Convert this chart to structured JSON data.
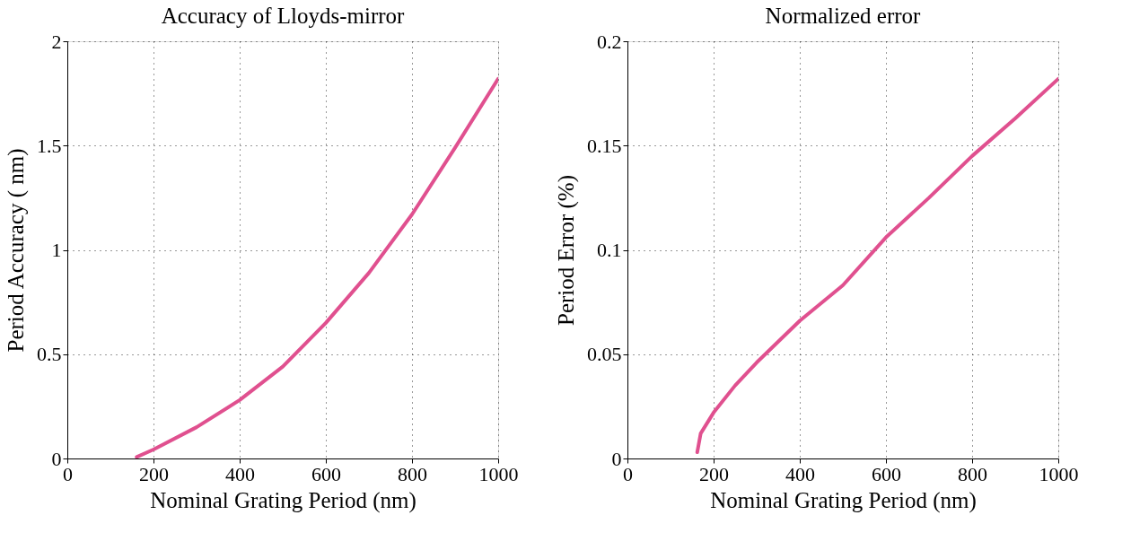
{
  "chart_data": [
    {
      "type": "line",
      "title": "Accuracy of Lloyds-mirror",
      "xlabel": "Nominal Grating Period (nm)",
      "ylabel": "Period Accuracy ( nm)",
      "xlim": [
        0,
        1000
      ],
      "ylim": [
        0,
        2
      ],
      "xticks": [
        0,
        200,
        400,
        600,
        800,
        1000
      ],
      "yticks": [
        0,
        0.5,
        1,
        1.5,
        2
      ],
      "grid": true,
      "line_style": "solid",
      "series": [
        {
          "color": "#e0508f",
          "x": [
            161,
            200,
            300,
            400,
            500,
            600,
            700,
            800,
            900,
            1000
          ],
          "values": [
            0.007,
            0.043,
            0.15,
            0.28,
            0.44,
            0.65,
            0.89,
            1.17,
            1.49,
            1.82
          ]
        }
      ]
    },
    {
      "type": "line",
      "title": "Normalized error",
      "xlabel": "Nominal Grating Period (nm)",
      "ylabel": "Period Error (%)",
      "xlim": [
        0,
        1000
      ],
      "ylim": [
        0,
        0.2
      ],
      "xticks": [
        0,
        200,
        400,
        600,
        800,
        1000
      ],
      "yticks": [
        0,
        0.05,
        0.1,
        0.15,
        0.2
      ],
      "grid": true,
      "line_style": "solid",
      "series": [
        {
          "color": "#e0508f",
          "x": [
            162,
            170,
            200,
            250,
            300,
            400,
            500,
            600,
            700,
            800,
            900,
            1000
          ],
          "values": [
            0.003,
            0.012,
            0.022,
            0.035,
            0.046,
            0.066,
            0.083,
            0.106,
            0.125,
            0.145,
            0.163,
            0.182
          ]
        }
      ]
    }
  ]
}
